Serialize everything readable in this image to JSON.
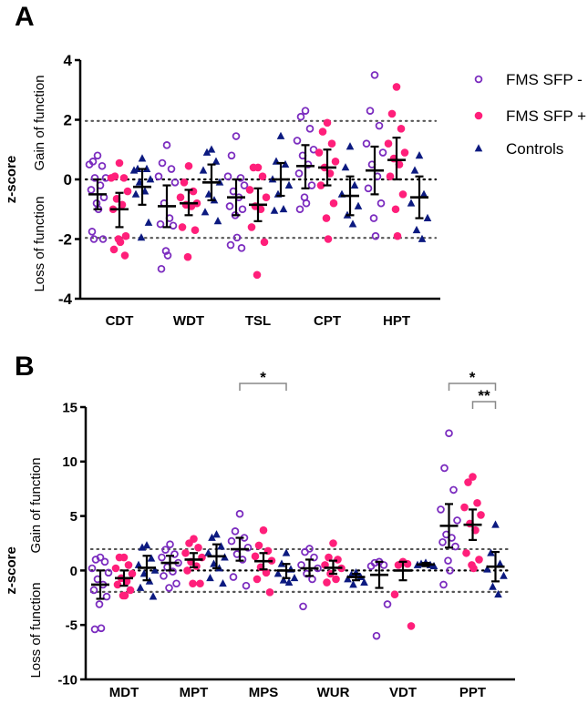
{
  "colors": {
    "fms_neg": "#7b2cbf",
    "fms_pos": "#ff1f7a",
    "controls": "#0c1a80",
    "axis": "#000000",
    "ref": "#555555"
  },
  "legend": [
    {
      "label": "FMS SFP -",
      "marker": "open-circle"
    },
    {
      "label": "FMS SFP +",
      "marker": "filled-circle"
    },
    {
      "label": "Controls",
      "marker": "triangle"
    }
  ],
  "chart_data": [
    {
      "panel": "A",
      "type": "scatter",
      "ylabel": "z-score",
      "ylabel_low": "Loss of function",
      "ylabel_high": "Gain of function",
      "ylim": [
        -4,
        4
      ],
      "yticks": [
        "4",
        "2",
        "0",
        "-2",
        "-4"
      ],
      "yticks_values": [
        4,
        2,
        0,
        -2,
        -4
      ],
      "reference_lines": [
        1.96,
        0,
        -1.96
      ],
      "categories": [
        "CDT",
        "WDT",
        "TSL",
        "CPT",
        "HPT"
      ],
      "groups": [
        [
          {
            "mean": -0.5,
            "ci": [
              -1.0,
              0.0
            ],
            "points": [
              0.8,
              0.6,
              0.45,
              0.5,
              0.05,
              0.05,
              -0.2,
              -0.35,
              -0.6,
              -0.8,
              -1.0,
              -1.75,
              -2.0,
              -2.0
            ]
          },
          {
            "mean": -1.0,
            "ci": [
              -1.6,
              -0.45
            ],
            "points": [
              0.55,
              0.1,
              0.05,
              0.05,
              -0.4,
              -0.65,
              -0.85,
              -1.0,
              -1.9,
              -2.0,
              -2.1,
              -2.35,
              -2.55
            ]
          },
          {
            "mean": -0.25,
            "ci": [
              -0.85,
              0.35
            ],
            "points": [
              0.7,
              0.35,
              0.35,
              0.3,
              0.0,
              -0.1,
              -0.4,
              -0.5,
              -1.45,
              -1.95
            ]
          }
        ],
        [
          {
            "mean": -0.9,
            "ci": [
              -1.6,
              -0.2
            ],
            "points": [
              1.15,
              0.55,
              0.35,
              0.1,
              -0.1,
              -0.8,
              -1.3,
              -1.5,
              -1.55,
              -2.4,
              -2.55,
              -3.0
            ]
          },
          {
            "mean": -0.8,
            "ci": [
              -1.2,
              -0.35
            ],
            "points": [
              0.45,
              -0.1,
              -0.4,
              -0.6,
              -0.8,
              -0.85,
              -0.9,
              -1.6,
              -1.7,
              -2.6
            ]
          },
          {
            "mean": -0.1,
            "ci": [
              -0.7,
              0.5
            ],
            "points": [
              1.0,
              0.9,
              0.6,
              0.3,
              -0.1,
              -0.5,
              -0.7,
              -1.1,
              -1.4
            ]
          }
        ],
        [
          {
            "mean": -0.6,
            "ci": [
              -1.2,
              0.0
            ],
            "points": [
              1.45,
              0.8,
              0.05,
              0.1,
              -0.2,
              -0.4,
              -0.6,
              -0.9,
              -1.0,
              -1.2,
              -1.95,
              -2.2,
              -2.3
            ]
          },
          {
            "mean": -0.85,
            "ci": [
              -1.4,
              -0.3
            ],
            "points": [
              0.4,
              0.4,
              0.1,
              -0.35,
              -0.6,
              -0.9,
              -1.0,
              -1.6,
              -2.1,
              -3.2
            ]
          },
          {
            "mean": 0.0,
            "ci": [
              -0.55,
              0.55
            ],
            "points": [
              1.45,
              0.6,
              0.5,
              0.0,
              -0.2,
              -0.5,
              -1.0,
              -1.05
            ]
          }
        ],
        [
          {
            "mean": 0.45,
            "ci": [
              -0.3,
              1.15
            ],
            "points": [
              2.3,
              2.1,
              1.7,
              1.3,
              1.0,
              0.8,
              0.5,
              0.2,
              -0.2,
              -0.6,
              -0.8,
              -1.0
            ]
          },
          {
            "mean": 0.4,
            "ci": [
              -0.2,
              1.0
            ],
            "points": [
              1.9,
              1.6,
              1.2,
              0.9,
              0.6,
              0.4,
              0.2,
              -0.2,
              -0.8,
              -1.3,
              -2.0
            ]
          },
          {
            "mean": -0.55,
            "ci": [
              -1.2,
              0.1
            ],
            "points": [
              1.1,
              0.4,
              -0.2,
              -0.5,
              -0.9,
              -1.2,
              -1.5
            ]
          }
        ],
        [
          {
            "mean": 0.3,
            "ci": [
              -0.5,
              1.1
            ],
            "points": [
              3.5,
              2.3,
              1.8,
              1.2,
              0.9,
              0.5,
              0.1,
              -0.3,
              -0.8,
              -1.3,
              -1.9
            ]
          },
          {
            "mean": 0.65,
            "ci": [
              0.0,
              1.4
            ],
            "points": [
              3.1,
              2.2,
              1.7,
              1.2,
              0.9,
              0.7,
              0.5,
              0.1,
              -0.5,
              -1.0,
              -1.9
            ]
          },
          {
            "mean": -0.6,
            "ci": [
              -1.3,
              0.1
            ],
            "points": [
              0.8,
              0.3,
              -0.5,
              -0.8,
              -1.3,
              -1.7,
              -2.0
            ]
          }
        ]
      ],
      "significance": []
    },
    {
      "panel": "B",
      "type": "scatter",
      "ylabel": "z-score",
      "ylabel_low": "Loss of function",
      "ylabel_high": "Gain of function",
      "ylim": [
        -10,
        15
      ],
      "yticks": [
        "15",
        "10",
        "5",
        "0",
        "-5",
        "-10"
      ],
      "yticks_values": [
        15,
        10,
        5,
        0,
        -5,
        -10
      ],
      "reference_lines": [
        1.96,
        0,
        -1.96
      ],
      "categories": [
        "MDT",
        "MPT",
        "MPS",
        "WUR",
        "VDT",
        "PPT"
      ],
      "groups": [
        [
          {
            "mean": -1.3,
            "ci": [
              -2.6,
              0.0
            ],
            "points": [
              1.2,
              1.0,
              0.8,
              0.2,
              -0.2,
              -0.8,
              -1.3,
              -1.8,
              -2.4,
              -3.1,
              -5.3,
              -5.4
            ]
          },
          {
            "mean": -0.7,
            "ci": [
              -1.4,
              0.0
            ],
            "points": [
              1.2,
              1.2,
              0.5,
              0.2,
              -0.3,
              -0.7,
              -1.0,
              -1.3,
              -1.8,
              -2.3,
              -2.3
            ]
          },
          {
            "mean": 0.25,
            "ci": [
              -0.9,
              1.35
            ],
            "points": [
              2.3,
              2.1,
              1.1,
              0.5,
              0.0,
              -0.3,
              -1.0,
              -1.6,
              -2.4
            ]
          }
        ],
        [
          {
            "mean": 0.7,
            "ci": [
              0.0,
              1.35
            ],
            "points": [
              2.4,
              1.9,
              1.5,
              1.2,
              0.7,
              0.3,
              -0.1,
              -0.5,
              -1.2,
              -1.6
            ]
          },
          {
            "mean": 1.0,
            "ci": [
              0.3,
              1.6
            ],
            "points": [
              2.9,
              2.5,
              2.1,
              1.6,
              1.2,
              0.8,
              0.4,
              0.0,
              -1.2,
              -1.2
            ]
          },
          {
            "mean": 1.3,
            "ci": [
              0.2,
              2.4
            ],
            "points": [
              3.3,
              3.0,
              2.2,
              1.6,
              1.2,
              0.6,
              0.2,
              -0.7,
              -1.2
            ]
          }
        ],
        [
          {
            "mean": 1.95,
            "ci": [
              0.9,
              3.0
            ],
            "points": [
              5.2,
              3.6,
              3.0,
              2.7,
              2.1,
              1.5,
              1.0,
              -0.6,
              -1.4
            ]
          },
          {
            "mean": 0.85,
            "ci": [
              0.1,
              1.6
            ],
            "points": [
              3.7,
              2.3,
              1.8,
              1.3,
              0.9,
              0.3,
              -0.2,
              -0.8,
              -2.0
            ]
          },
          {
            "mean": 0.0,
            "ci": [
              -0.7,
              0.6
            ],
            "points": [
              1.6,
              0.6,
              0.1,
              -0.3,
              -0.7,
              -0.9,
              -1.1
            ]
          }
        ],
        [
          {
            "mean": 0.2,
            "ci": [
              -0.5,
              1.0
            ],
            "points": [
              2.0,
              1.7,
              1.2,
              0.5,
              0.2,
              -0.3,
              -0.8,
              -3.3
            ]
          },
          {
            "mean": 0.25,
            "ci": [
              -0.3,
              0.9
            ],
            "points": [
              2.5,
              1.2,
              1.0,
              0.5,
              0.2,
              -0.3,
              -0.8,
              -1.1
            ]
          },
          {
            "mean": -0.6,
            "ci": [
              -0.9,
              -0.3
            ],
            "points": [
              -0.2,
              -0.4,
              -0.6,
              -0.8,
              -1.1,
              -1.3
            ]
          }
        ],
        [
          {
            "mean": -0.4,
            "ci": [
              -1.6,
              0.8
            ],
            "points": [
              0.8,
              0.7,
              0.5,
              0.4,
              -3.1,
              -6.0
            ]
          },
          {
            "mean": 0.0,
            "ci": [
              -0.9,
              0.8
            ],
            "points": [
              0.8,
              0.5,
              0.6,
              -2.2,
              -5.1
            ]
          },
          {
            "mean": 0.55,
            "ci": [
              0.4,
              0.7
            ],
            "points": [
              0.7,
              0.6,
              0.5,
              0.5,
              0.4
            ]
          }
        ],
        [
          {
            "mean": 4.1,
            "ci": [
              2.1,
              6.1
            ],
            "points": [
              12.6,
              9.4,
              7.4,
              5.6,
              4.6,
              3.3,
              3.0,
              2.6,
              2.2,
              0.9,
              0.0,
              -1.3
            ]
          },
          {
            "mean": 4.2,
            "ci": [
              2.8,
              5.6
            ],
            "points": [
              8.6,
              8.1,
              6.2,
              5.8,
              5.1,
              4.3,
              3.7,
              1.6,
              1.0,
              0.5,
              0.2
            ]
          },
          {
            "mean": 0.35,
            "ci": [
              -1.0,
              1.7
            ],
            "points": [
              4.2,
              1.6,
              0.6,
              0.1,
              -0.5,
              -1.5,
              -2.2
            ]
          }
        ]
      ],
      "significance": [
        {
          "category": "MPS",
          "from_group": 0,
          "to_group": 2,
          "label": "*",
          "level": 0
        },
        {
          "category": "PPT",
          "from_group": 0,
          "to_group": 2,
          "label": "*",
          "level": 0
        },
        {
          "category": "PPT",
          "from_group": 1,
          "to_group": 2,
          "label": "**",
          "level": 1
        }
      ]
    }
  ]
}
